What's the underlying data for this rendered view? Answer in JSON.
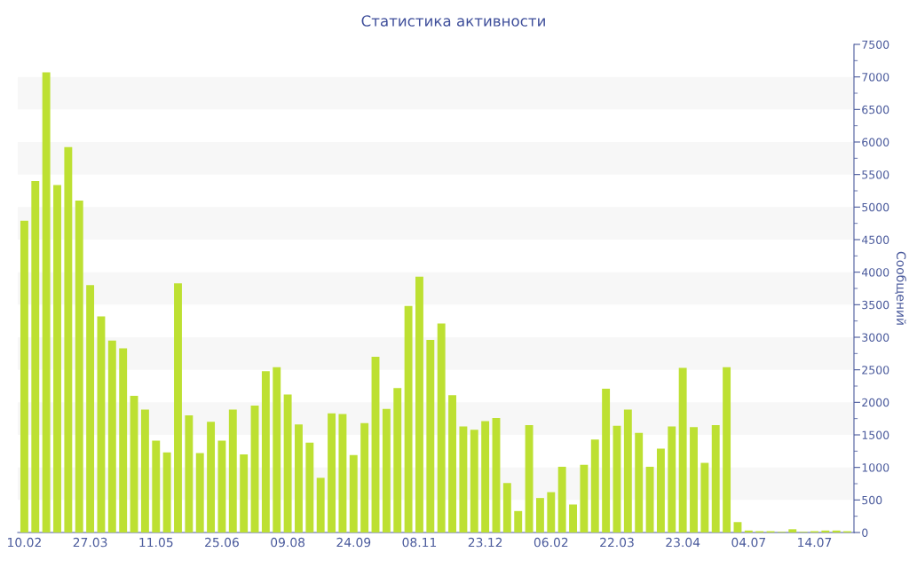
{
  "chart_data": {
    "type": "bar",
    "title": "Статистика активности",
    "ylabel": "Сообщений",
    "categories": [
      "10.02",
      null,
      null,
      null,
      null,
      null,
      "27.03",
      null,
      null,
      null,
      null,
      null,
      "11.05",
      null,
      null,
      null,
      null,
      null,
      "25.06",
      null,
      null,
      null,
      null,
      null,
      "09.08",
      null,
      null,
      null,
      null,
      null,
      "24.09",
      null,
      null,
      null,
      null,
      null,
      "08.11",
      null,
      null,
      null,
      null,
      null,
      "23.12",
      null,
      null,
      null,
      null,
      null,
      "06.02",
      null,
      null,
      null,
      null,
      null,
      "22.03",
      null,
      null,
      null,
      null,
      null,
      "23.04",
      null,
      null,
      null,
      null,
      null,
      "04.07",
      null,
      null,
      null,
      null,
      null,
      "14.07",
      null,
      null,
      null
    ],
    "values": [
      4790,
      5400,
      7070,
      5340,
      5920,
      5100,
      3800,
      3320,
      2950,
      2830,
      2100,
      1890,
      1410,
      1230,
      3830,
      1800,
      1220,
      1700,
      1410,
      1890,
      1200,
      1950,
      2480,
      2540,
      2120,
      1660,
      1380,
      840,
      1830,
      1820,
      1190,
      1680,
      2700,
      1900,
      2220,
      3480,
      3930,
      2960,
      3210,
      2110,
      1630,
      1580,
      1710,
      1760,
      760,
      330,
      1650,
      530,
      620,
      1010,
      430,
      1040,
      1430,
      2210,
      1640,
      1890,
      1530,
      1010,
      1290,
      1630,
      2530,
      1620,
      1070,
      1650,
      2540,
      160,
      30,
      20,
      20,
      10,
      50,
      10,
      20,
      30,
      30,
      20
    ],
    "color": "#bde032",
    "ylim": [
      0,
      7500
    ],
    "yticks": [
      0,
      500,
      1000,
      1500,
      2000,
      2500,
      3000,
      3500,
      4000,
      4500,
      5000,
      5500,
      6000,
      6500,
      7000,
      7500
    ],
    "bands": [
      {
        "axis": "y",
        "from": 500,
        "to": 1000,
        "color": "#f7f7f7"
      },
      {
        "axis": "y",
        "from": 1500,
        "to": 2000,
        "color": "#f7f7f7"
      },
      {
        "axis": "y",
        "from": 2500,
        "to": 3000,
        "color": "#f7f7f7"
      },
      {
        "axis": "y",
        "from": 3500,
        "to": 4000,
        "color": "#f7f7f7"
      },
      {
        "axis": "y",
        "from": 4500,
        "to": 5000,
        "color": "#f7f7f7"
      },
      {
        "axis": "y",
        "from": 5500,
        "to": 6000,
        "color": "#f7f7f7"
      },
      {
        "axis": "y",
        "from": 6500,
        "to": 7000,
        "color": "#f7f7f7"
      }
    ]
  }
}
